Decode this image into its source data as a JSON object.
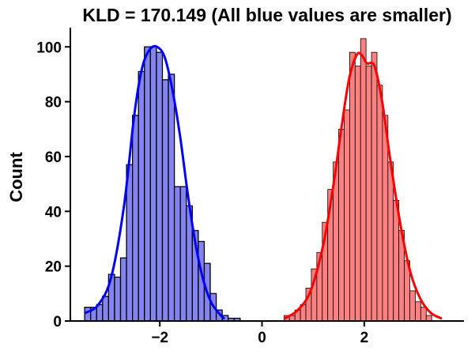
{
  "chart_data": {
    "type": "histogram",
    "title": "KLD = 170.149 (All blue values are smaller)",
    "xlabel": "",
    "ylabel": "Count",
    "xlim": [
      -3.75,
      3.95
    ],
    "ylim": [
      0,
      107
    ],
    "x_ticks": [
      -2,
      0,
      2
    ],
    "x_tick_labels": [
      "−2",
      "0",
      "2"
    ],
    "y_ticks": [
      0,
      20,
      40,
      60,
      80,
      100
    ],
    "y_tick_labels": [
      "0",
      "20",
      "40",
      "60",
      "80",
      "100"
    ],
    "grid": false,
    "legend": "none",
    "series": [
      {
        "color": "#0000ff",
        "fill": "#8484f0",
        "bin_width": 0.117,
        "bin_start": -3.47,
        "counts": [
          5,
          5,
          6,
          9,
          17,
          16,
          23,
          57,
          75,
          91,
          100,
          100,
          98,
          88,
          90,
          49,
          49,
          42,
          33,
          29,
          21,
          10,
          4,
          2,
          1,
          1
        ],
        "kde": [
          [
            -3.45,
            3
          ],
          [
            -3.2,
            6
          ],
          [
            -2.95,
            16
          ],
          [
            -2.7,
            42
          ],
          [
            -2.5,
            75
          ],
          [
            -2.35,
            92
          ],
          [
            -2.2,
            99
          ],
          [
            -2.05,
            100
          ],
          [
            -1.9,
            96
          ],
          [
            -1.75,
            84
          ],
          [
            -1.6,
            67
          ],
          [
            -1.45,
            46
          ],
          [
            -1.3,
            28
          ],
          [
            -1.15,
            15
          ],
          [
            -1.0,
            7
          ],
          [
            -0.85,
            3
          ],
          [
            -0.75,
            1
          ]
        ]
      },
      {
        "color": "#ff0000",
        "fill": "#ff8080",
        "bin_width": 0.107,
        "bin_start": 0.43,
        "counts": [
          2,
          2,
          4,
          6,
          12,
          19,
          25,
          36,
          48,
          58,
          70,
          77,
          98,
          93,
          103,
          93,
          98,
          86,
          75,
          58,
          44,
          33,
          22,
          11,
          7,
          5,
          2
        ],
        "kde": [
          [
            0.45,
            1
          ],
          [
            0.7,
            4
          ],
          [
            0.95,
            11
          ],
          [
            1.2,
            28
          ],
          [
            1.4,
            50
          ],
          [
            1.55,
            70
          ],
          [
            1.7,
            88
          ],
          [
            1.85,
            97
          ],
          [
            1.95,
            97
          ],
          [
            2.05,
            94
          ],
          [
            2.2,
            93
          ],
          [
            2.35,
            80
          ],
          [
            2.5,
            60
          ],
          [
            2.7,
            36
          ],
          [
            2.9,
            18
          ],
          [
            3.1,
            8
          ],
          [
            3.3,
            3
          ],
          [
            3.5,
            1
          ]
        ]
      }
    ]
  }
}
